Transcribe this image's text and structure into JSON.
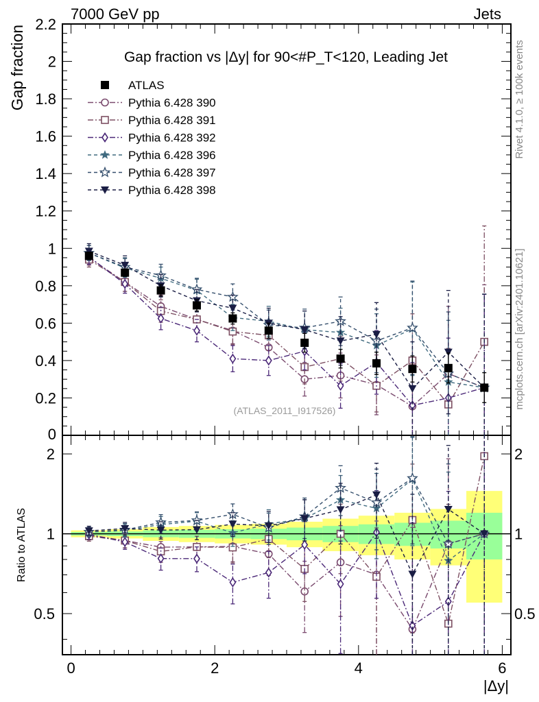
{
  "header": {
    "left": "7000 GeV pp",
    "right": "Jets",
    "side_top": "Rivet 4.1.0, ≥ 100k events",
    "side_bottom": "mcplots.cern.ch [arXiv:2401.10621]"
  },
  "colors": {
    "data": "#000000",
    "p390": "#7a4a6e",
    "p391": "#7d4f62",
    "p392": "#4a2777",
    "p396": "#3f6a7f",
    "p397": "#344e6c",
    "p398": "#1a1d44",
    "band_green": "#99ff99",
    "band_yellow": "#ffff77"
  },
  "chart_data": {
    "type": "line",
    "title": "Gap fraction vs |Δy| for 90<#P_T<120, Leading Jet",
    "watermark": "(ATLAS_2011_I917526)",
    "xlabel": "|Δy|",
    "ylabel_main": "Gap fraction",
    "ylabel_ratio": "Ratio to ATLAS",
    "xlim": [
      -0.12,
      6.12
    ],
    "ylim_main": [
      0,
      2.2
    ],
    "ylim_ratio": [
      0.35,
      2.35
    ],
    "xticks": [
      "0",
      "2",
      "4",
      "6"
    ],
    "yticks_main": [
      "0",
      "0.2",
      "0.4",
      "0.6",
      "0.8",
      "1",
      "1.2",
      "1.4",
      "1.6",
      "1.8",
      "2",
      "2.2"
    ],
    "yticks_ratio": [
      "0.5",
      "1",
      "2"
    ],
    "x": [
      0.25,
      0.75,
      1.25,
      1.75,
      2.25,
      2.75,
      3.25,
      3.75,
      4.25,
      4.75,
      5.25,
      5.75
    ],
    "data": {
      "name": "ATLAS",
      "y": [
        0.96,
        0.87,
        0.775,
        0.695,
        0.625,
        0.56,
        0.495,
        0.41,
        0.385,
        0.355,
        0.36,
        0.255
      ],
      "err": [
        0.02,
        0.02,
        0.03,
        0.03,
        0.03,
        0.04,
        0.05,
        0.05,
        0.06,
        0.07,
        0.08,
        0.08
      ],
      "ratio_band_green": [
        0.015,
        0.02,
        0.03,
        0.035,
        0.04,
        0.045,
        0.055,
        0.07,
        0.085,
        0.1,
        0.12,
        0.2
      ],
      "ratio_band_yellow": [
        0.03,
        0.04,
        0.06,
        0.07,
        0.08,
        0.09,
        0.11,
        0.14,
        0.17,
        0.2,
        0.24,
        0.45
      ]
    },
    "series": [
      {
        "name": "Pythia 6.428 390",
        "marker": "circle-open",
        "dash": "dashdot",
        "color_key": "p390",
        "y": [
          0.95,
          0.82,
          0.69,
          0.62,
          0.56,
          0.47,
          0.3,
          0.32,
          0.27,
          0.155,
          0.33,
          0.255
        ],
        "err": [
          0.04,
          0.05,
          0.06,
          0.06,
          0.07,
          0.08,
          0.09,
          0.12,
          0.16,
          0.22,
          0.36,
          0.55
        ]
      },
      {
        "name": "Pythia 6.428 391",
        "marker": "square-open",
        "dash": "dashdot",
        "color_key": "p391",
        "y": [
          0.94,
          0.82,
          0.665,
          0.62,
          0.555,
          0.535,
          0.365,
          0.41,
          0.265,
          0.4,
          0.165,
          0.5
        ],
        "err": [
          0.04,
          0.05,
          0.06,
          0.06,
          0.07,
          0.08,
          0.09,
          0.12,
          0.14,
          0.25,
          0.3,
          0.62
        ]
      },
      {
        "name": "Pythia 6.428 392",
        "marker": "diamond-open",
        "dash": "dashdot",
        "color_key": "p392",
        "y": [
          0.955,
          0.81,
          0.625,
          0.56,
          0.41,
          0.4,
          0.45,
          0.265,
          0.39,
          0.16,
          0.2,
          0.255
        ],
        "err": [
          0.04,
          0.05,
          0.06,
          0.06,
          0.07,
          0.08,
          0.1,
          0.12,
          0.17,
          0.23,
          0.32,
          0.5
        ]
      },
      {
        "name": "Pythia 6.428 396",
        "marker": "star-filled",
        "dash": "dash",
        "color_key": "p396",
        "y": [
          0.975,
          0.895,
          0.84,
          0.775,
          0.63,
          0.61,
          0.565,
          0.55,
          0.48,
          0.57,
          0.285,
          0.255
        ],
        "err": [
          0.04,
          0.05,
          0.06,
          0.06,
          0.07,
          0.08,
          0.1,
          0.13,
          0.17,
          0.25,
          0.33,
          0.5
        ]
      },
      {
        "name": "Pythia 6.428 397",
        "marker": "star-open",
        "dash": "dash",
        "color_key": "p397",
        "y": [
          0.975,
          0.9,
          0.855,
          0.78,
          0.74,
          0.59,
          0.575,
          0.61,
          0.505,
          0.575,
          0.33,
          0.255
        ],
        "err": [
          0.04,
          0.05,
          0.06,
          0.06,
          0.07,
          0.08,
          0.1,
          0.13,
          0.17,
          0.25,
          0.33,
          0.5
        ]
      },
      {
        "name": "Pythia 6.428 398",
        "marker": "tri-down-filled",
        "dash": "dash",
        "color_key": "p398",
        "y": [
          0.985,
          0.91,
          0.8,
          0.72,
          0.68,
          0.6,
          0.565,
          0.505,
          0.54,
          0.25,
          0.445,
          0.255
        ],
        "err": [
          0.04,
          0.05,
          0.06,
          0.06,
          0.07,
          0.08,
          0.1,
          0.13,
          0.17,
          0.25,
          0.33,
          0.5
        ]
      }
    ]
  }
}
